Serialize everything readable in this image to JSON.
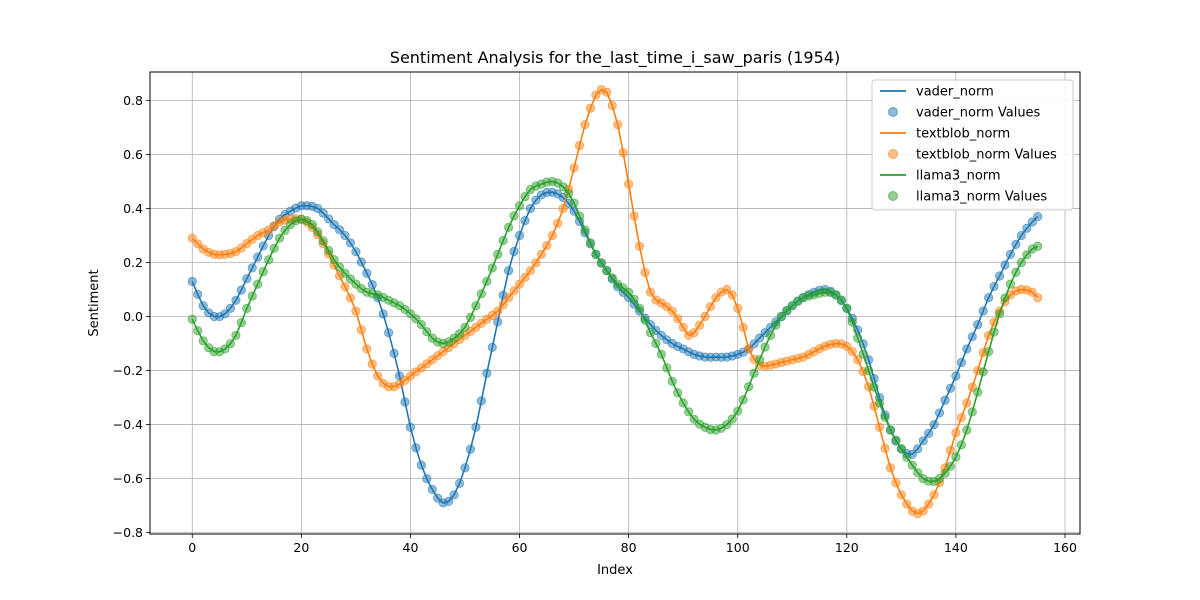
{
  "chart_data": {
    "type": "line",
    "title": "Sentiment Analysis for the_last_time_i_saw_paris (1954)",
    "xlabel": "Index",
    "ylabel": "Sentiment",
    "xlim": [
      -7.75,
      162.75
    ],
    "ylim": [
      -0.805,
      0.905
    ],
    "xticks": [
      0,
      20,
      40,
      60,
      80,
      100,
      120,
      140,
      160
    ],
    "yticks": [
      -0.8,
      -0.6,
      -0.4,
      -0.2,
      0.0,
      0.2,
      0.4,
      0.6,
      0.8
    ],
    "grid": true,
    "legend_position": "top-right",
    "legend": [
      "vader_norm",
      "vader_norm Values",
      "textblob_norm",
      "textblob_norm Values",
      "llama3_norm",
      "llama3_norm Values"
    ],
    "series": [
      {
        "name": "vader_norm",
        "color": "#1f77b4",
        "knots": [
          [
            0,
            0.13
          ],
          [
            2,
            0.04
          ],
          [
            4,
            0.0
          ],
          [
            6,
            0.01
          ],
          [
            8,
            0.06
          ],
          [
            10,
            0.14
          ],
          [
            12,
            0.22
          ],
          [
            14,
            0.3
          ],
          [
            16,
            0.36
          ],
          [
            18,
            0.39
          ],
          [
            20,
            0.41
          ],
          [
            21,
            0.41
          ],
          [
            23,
            0.4
          ],
          [
            26,
            0.34
          ],
          [
            28,
            0.3
          ],
          [
            30,
            0.24
          ],
          [
            32,
            0.16
          ],
          [
            34,
            0.07
          ],
          [
            36,
            -0.06
          ],
          [
            38,
            -0.22
          ],
          [
            40,
            -0.41
          ],
          [
            42,
            -0.55
          ],
          [
            44,
            -0.64
          ],
          [
            46,
            -0.69
          ],
          [
            48,
            -0.66
          ],
          [
            50,
            -0.56
          ],
          [
            52,
            -0.41
          ],
          [
            54,
            -0.21
          ],
          [
            56,
            -0.02
          ],
          [
            58,
            0.17
          ],
          [
            60,
            0.3
          ],
          [
            62,
            0.4
          ],
          [
            64,
            0.45
          ],
          [
            66,
            0.46
          ],
          [
            68,
            0.44
          ],
          [
            70,
            0.39
          ],
          [
            72,
            0.31
          ],
          [
            74,
            0.23
          ],
          [
            76,
            0.17
          ],
          [
            78,
            0.11
          ],
          [
            80,
            0.07
          ],
          [
            82,
            0.02
          ],
          [
            84,
            -0.03
          ],
          [
            86,
            -0.07
          ],
          [
            88,
            -0.1
          ],
          [
            90,
            -0.12
          ],
          [
            92,
            -0.14
          ],
          [
            94,
            -0.15
          ],
          [
            96,
            -0.15
          ],
          [
            98,
            -0.15
          ],
          [
            100,
            -0.14
          ],
          [
            102,
            -0.12
          ],
          [
            104,
            -0.08
          ],
          [
            106,
            -0.04
          ],
          [
            108,
            0.0
          ],
          [
            110,
            0.04
          ],
          [
            112,
            0.07
          ],
          [
            114,
            0.09
          ],
          [
            116,
            0.1
          ],
          [
            118,
            0.08
          ],
          [
            120,
            0.03
          ],
          [
            122,
            -0.05
          ],
          [
            124,
            -0.16
          ],
          [
            126,
            -0.3
          ],
          [
            128,
            -0.42
          ],
          [
            130,
            -0.49
          ],
          [
            132,
            -0.51
          ],
          [
            134,
            -0.46
          ],
          [
            136,
            -0.4
          ],
          [
            138,
            -0.31
          ],
          [
            140,
            -0.22
          ],
          [
            142,
            -0.12
          ],
          [
            144,
            -0.03
          ],
          [
            146,
            0.07
          ],
          [
            148,
            0.15
          ],
          [
            150,
            0.23
          ],
          [
            152,
            0.3
          ],
          [
            154,
            0.35
          ],
          [
            155,
            0.37
          ]
        ]
      },
      {
        "name": "textblob_norm",
        "color": "#ff7f0e",
        "knots": [
          [
            0,
            0.29
          ],
          [
            2,
            0.25
          ],
          [
            4,
            0.23
          ],
          [
            6,
            0.23
          ],
          [
            8,
            0.24
          ],
          [
            10,
            0.27
          ],
          [
            12,
            0.3
          ],
          [
            14,
            0.32
          ],
          [
            16,
            0.35
          ],
          [
            18,
            0.36
          ],
          [
            20,
            0.36
          ],
          [
            22,
            0.33
          ],
          [
            24,
            0.27
          ],
          [
            26,
            0.19
          ],
          [
            28,
            0.11
          ],
          [
            30,
            0.02
          ],
          [
            32,
            -0.12
          ],
          [
            34,
            -0.22
          ],
          [
            36,
            -0.26
          ],
          [
            38,
            -0.25
          ],
          [
            40,
            -0.22
          ],
          [
            42,
            -0.19
          ],
          [
            44,
            -0.16
          ],
          [
            46,
            -0.13
          ],
          [
            48,
            -0.1
          ],
          [
            50,
            -0.07
          ],
          [
            52,
            -0.04
          ],
          [
            54,
            -0.01
          ],
          [
            56,
            0.02
          ],
          [
            58,
            0.07
          ],
          [
            60,
            0.12
          ],
          [
            62,
            0.17
          ],
          [
            64,
            0.23
          ],
          [
            66,
            0.3
          ],
          [
            68,
            0.4
          ],
          [
            70,
            0.55
          ],
          [
            72,
            0.71
          ],
          [
            74,
            0.82
          ],
          [
            75,
            0.84
          ],
          [
            76,
            0.83
          ],
          [
            78,
            0.71
          ],
          [
            80,
            0.49
          ],
          [
            82,
            0.26
          ],
          [
            84,
            0.09
          ],
          [
            86,
            0.05
          ],
          [
            88,
            0.02
          ],
          [
            90,
            -0.04
          ],
          [
            91,
            -0.07
          ],
          [
            92,
            -0.06
          ],
          [
            94,
            0.0
          ],
          [
            96,
            0.07
          ],
          [
            98,
            0.1
          ],
          [
            99,
            0.08
          ],
          [
            100,
            0.03
          ],
          [
            101,
            -0.04
          ],
          [
            102,
            -0.12
          ],
          [
            104,
            -0.18
          ],
          [
            106,
            -0.18
          ],
          [
            108,
            -0.17
          ],
          [
            110,
            -0.16
          ],
          [
            112,
            -0.15
          ],
          [
            114,
            -0.13
          ],
          [
            116,
            -0.11
          ],
          [
            118,
            -0.1
          ],
          [
            120,
            -0.11
          ],
          [
            122,
            -0.16
          ],
          [
            124,
            -0.26
          ],
          [
            126,
            -0.41
          ],
          [
            128,
            -0.56
          ],
          [
            130,
            -0.66
          ],
          [
            132,
            -0.72
          ],
          [
            133,
            -0.73
          ],
          [
            134,
            -0.72
          ],
          [
            136,
            -0.66
          ],
          [
            138,
            -0.56
          ],
          [
            140,
            -0.43
          ],
          [
            142,
            -0.32
          ],
          [
            144,
            -0.2
          ],
          [
            146,
            -0.07
          ],
          [
            148,
            0.02
          ],
          [
            150,
            0.08
          ],
          [
            152,
            0.1
          ],
          [
            154,
            0.09
          ],
          [
            155,
            0.07
          ]
        ]
      },
      {
        "name": "llama3_norm",
        "color": "#2ca02c",
        "knots": [
          [
            0,
            -0.01
          ],
          [
            2,
            -0.09
          ],
          [
            4,
            -0.13
          ],
          [
            6,
            -0.12
          ],
          [
            8,
            -0.07
          ],
          [
            10,
            0.03
          ],
          [
            12,
            0.12
          ],
          [
            14,
            0.21
          ],
          [
            16,
            0.29
          ],
          [
            18,
            0.34
          ],
          [
            20,
            0.36
          ],
          [
            22,
            0.34
          ],
          [
            24,
            0.28
          ],
          [
            26,
            0.21
          ],
          [
            28,
            0.16
          ],
          [
            30,
            0.12
          ],
          [
            32,
            0.09
          ],
          [
            34,
            0.08
          ],
          [
            36,
            0.06
          ],
          [
            38,
            0.04
          ],
          [
            40,
            0.01
          ],
          [
            42,
            -0.03
          ],
          [
            44,
            -0.08
          ],
          [
            46,
            -0.1
          ],
          [
            48,
            -0.08
          ],
          [
            50,
            -0.04
          ],
          [
            52,
            0.04
          ],
          [
            54,
            0.13
          ],
          [
            56,
            0.23
          ],
          [
            58,
            0.33
          ],
          [
            60,
            0.41
          ],
          [
            62,
            0.47
          ],
          [
            64,
            0.49
          ],
          [
            66,
            0.5
          ],
          [
            68,
            0.48
          ],
          [
            70,
            0.42
          ],
          [
            72,
            0.32
          ],
          [
            74,
            0.23
          ],
          [
            76,
            0.17
          ],
          [
            78,
            0.12
          ],
          [
            80,
            0.09
          ],
          [
            82,
            0.03
          ],
          [
            84,
            -0.06
          ],
          [
            86,
            -0.14
          ],
          [
            88,
            -0.24
          ],
          [
            90,
            -0.32
          ],
          [
            92,
            -0.38
          ],
          [
            94,
            -0.41
          ],
          [
            96,
            -0.42
          ],
          [
            98,
            -0.4
          ],
          [
            100,
            -0.35
          ],
          [
            102,
            -0.26
          ],
          [
            104,
            -0.16
          ],
          [
            106,
            -0.07
          ],
          [
            108,
            0.0
          ],
          [
            110,
            0.04
          ],
          [
            112,
            0.07
          ],
          [
            114,
            0.08
          ],
          [
            116,
            0.09
          ],
          [
            118,
            0.08
          ],
          [
            120,
            0.03
          ],
          [
            122,
            -0.08
          ],
          [
            124,
            -0.2
          ],
          [
            126,
            -0.32
          ],
          [
            128,
            -0.42
          ],
          [
            130,
            -0.49
          ],
          [
            132,
            -0.55
          ],
          [
            134,
            -0.6
          ],
          [
            136,
            -0.61
          ],
          [
            138,
            -0.58
          ],
          [
            140,
            -0.52
          ],
          [
            142,
            -0.42
          ],
          [
            144,
            -0.28
          ],
          [
            146,
            -0.13
          ],
          [
            148,
            0.01
          ],
          [
            150,
            0.12
          ],
          [
            152,
            0.2
          ],
          [
            154,
            0.25
          ],
          [
            155,
            0.26
          ]
        ]
      }
    ]
  }
}
